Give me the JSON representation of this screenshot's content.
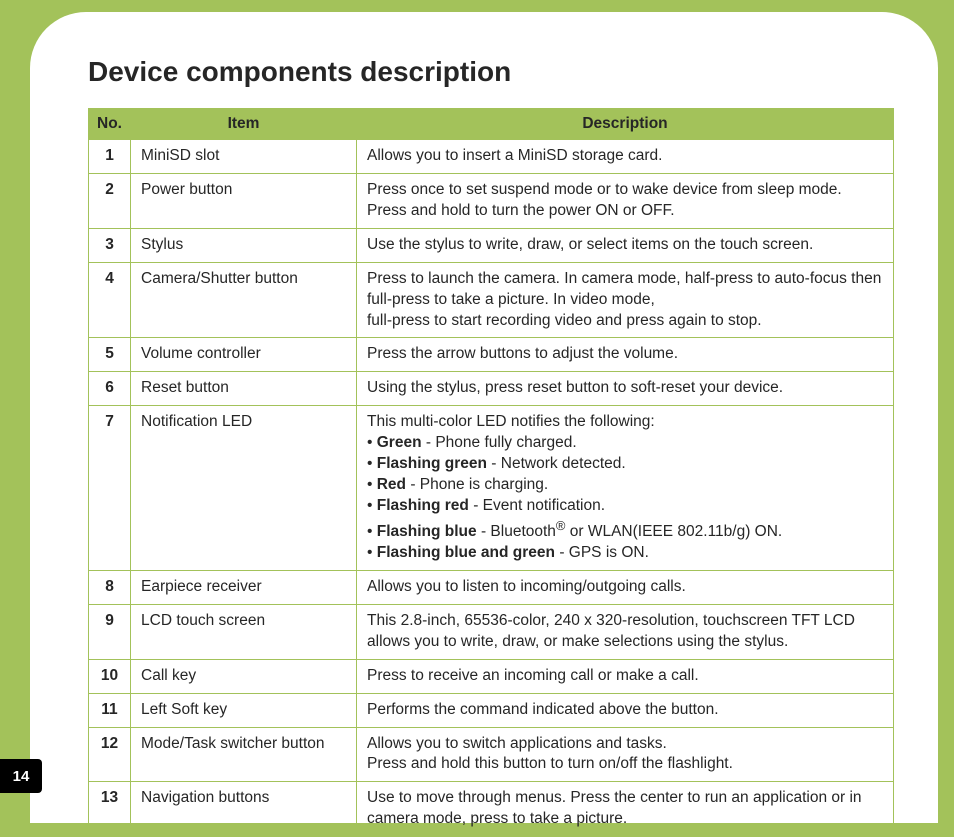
{
  "title": "Device components description",
  "page_number": "14",
  "colors": {
    "page_bg": "#a3c25a",
    "panel_bg": "#ffffff",
    "header_bg": "#a3c25a",
    "border": "#a3c25a",
    "text": "#262626",
    "tab_bg": "#000000",
    "tab_text": "#ffffff"
  },
  "table": {
    "columns": [
      "No.",
      "Item",
      "Description"
    ],
    "rows": [
      {
        "no": "1",
        "item": "MiniSD slot",
        "desc": [
          {
            "segments": [
              {
                "t": "Allows you to insert a MiniSD storage card."
              }
            ]
          }
        ]
      },
      {
        "no": "2",
        "item": "Power button",
        "desc": [
          {
            "segments": [
              {
                "t": "Press once to set suspend mode or to wake device from sleep mode. Press and hold to turn the power ON or OFF."
              }
            ]
          }
        ]
      },
      {
        "no": "3",
        "item": "Stylus",
        "desc": [
          {
            "segments": [
              {
                "t": "Use the stylus to write, draw, or select items on the touch screen."
              }
            ]
          }
        ]
      },
      {
        "no": "4",
        "item": "Camera/Shutter button",
        "desc": [
          {
            "segments": [
              {
                "t": "Press to launch the camera. In camera mode, half-press to auto-focus then full-press to take a picture. In video mode,"
              }
            ]
          },
          {
            "segments": [
              {
                "t": "full-press to start recording video and press again to stop."
              }
            ]
          }
        ]
      },
      {
        "no": "5",
        "item": "Volume controller",
        "desc": [
          {
            "segments": [
              {
                "t": "Press the arrow buttons to adjust the volume."
              }
            ]
          }
        ]
      },
      {
        "no": "6",
        "item": "Reset button",
        "desc": [
          {
            "segments": [
              {
                "t": "Using the stylus, press reset button to soft-reset your device."
              }
            ]
          }
        ]
      },
      {
        "no": "7",
        "item": "Notification LED",
        "desc": [
          {
            "segments": [
              {
                "t": "This multi-color LED notifies the following:"
              }
            ]
          },
          {
            "segments": [
              {
                "t": "• "
              },
              {
                "t": "Green",
                "bold": true
              },
              {
                "t": " - Phone fully charged."
              }
            ]
          },
          {
            "segments": [
              {
                "t": "• "
              },
              {
                "t": "Flashing green",
                "bold": true
              },
              {
                "t": " - Network detected."
              }
            ]
          },
          {
            "segments": [
              {
                "t": "• "
              },
              {
                "t": "Red",
                "bold": true
              },
              {
                "t": " - Phone is charging."
              }
            ]
          },
          {
            "segments": [
              {
                "t": "• "
              },
              {
                "t": "Flashing red",
                "bold": true
              },
              {
                "t": " - Event notification."
              }
            ]
          },
          {
            "segments": [
              {
                "t": "• "
              },
              {
                "t": "Flashing blue",
                "bold": true
              },
              {
                "t": " - Bluetooth"
              },
              {
                "t": "®",
                "sup": true
              },
              {
                "t": " or WLAN(IEEE 802.11b/g) ON."
              }
            ]
          },
          {
            "segments": [
              {
                "t": "• "
              },
              {
                "t": "Flashing blue and green",
                "bold": true
              },
              {
                "t": " - GPS is ON."
              }
            ]
          }
        ]
      },
      {
        "no": "8",
        "item": "Earpiece receiver",
        "desc": [
          {
            "segments": [
              {
                "t": "Allows you to listen to incoming/outgoing calls."
              }
            ]
          }
        ]
      },
      {
        "no": "9",
        "item": "LCD touch screen",
        "desc": [
          {
            "segments": [
              {
                "t": "This 2.8-inch, 65536-color, 240 x 320-resolution, touchscreen TFT LCD allows you to write, draw, or make selections using the stylus."
              }
            ]
          }
        ]
      },
      {
        "no": "10",
        "item": "Call key",
        "desc": [
          {
            "segments": [
              {
                "t": "Press to receive an incoming call or make a call."
              }
            ]
          }
        ]
      },
      {
        "no": "11",
        "item": "Left Soft key",
        "desc": [
          {
            "segments": [
              {
                "t": "Performs the command indicated above the button."
              }
            ]
          }
        ]
      },
      {
        "no": "12",
        "item": "Mode/Task switcher button",
        "desc": [
          {
            "segments": [
              {
                "t": "Allows you to switch applications and tasks."
              }
            ]
          },
          {
            "segments": [
              {
                "t": "Press and hold this button to turn on/off the flashlight."
              }
            ]
          }
        ]
      },
      {
        "no": "13",
        "item": "Navigation buttons",
        "desc": [
          {
            "segments": [
              {
                "t": "Use to move through menus. Press the center to run an application or in camera mode, press to take a picture."
              }
            ]
          }
        ]
      }
    ]
  }
}
